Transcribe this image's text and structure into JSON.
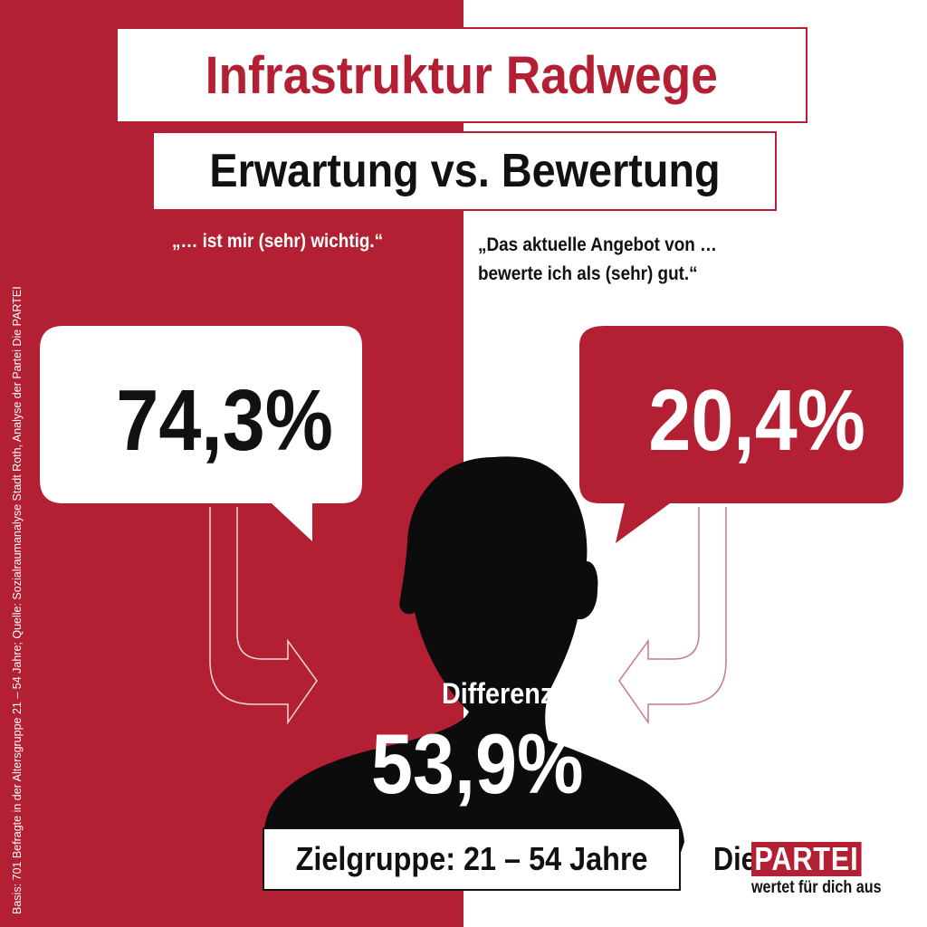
{
  "title": "Infrastruktur Radwege",
  "subtitle": "Erwartung vs. Bewertung",
  "quote_left": "„… ist mir (sehr) wichtig.“",
  "quote_right": "„Das aktuelle Angebot von …\nbewerte ich als (sehr) gut.“",
  "value_left": "74,3%",
  "value_right": "20,4%",
  "difference_label": "Differenz",
  "difference_value": "53,9%",
  "target_group": "Zielgruppe: 21 – 54 Jahre",
  "source_note": "Basis: 701 Befragte in der Altersgruppe 21 – 54 Jahre; Quelle: Sozialraumanalyse Stadt Roth, Analyse der Partei Die PARTEI",
  "logo": {
    "die": "Die",
    "partei": "PARTEI",
    "tagline": "wertet für dich aus"
  },
  "colors": {
    "brand_red": "#b32033",
    "black": "#111111",
    "white": "#ffffff"
  },
  "icons": [
    "person-silhouette-icon",
    "arrow-right-icon",
    "arrow-left-icon",
    "speech-bubble-icon"
  ]
}
